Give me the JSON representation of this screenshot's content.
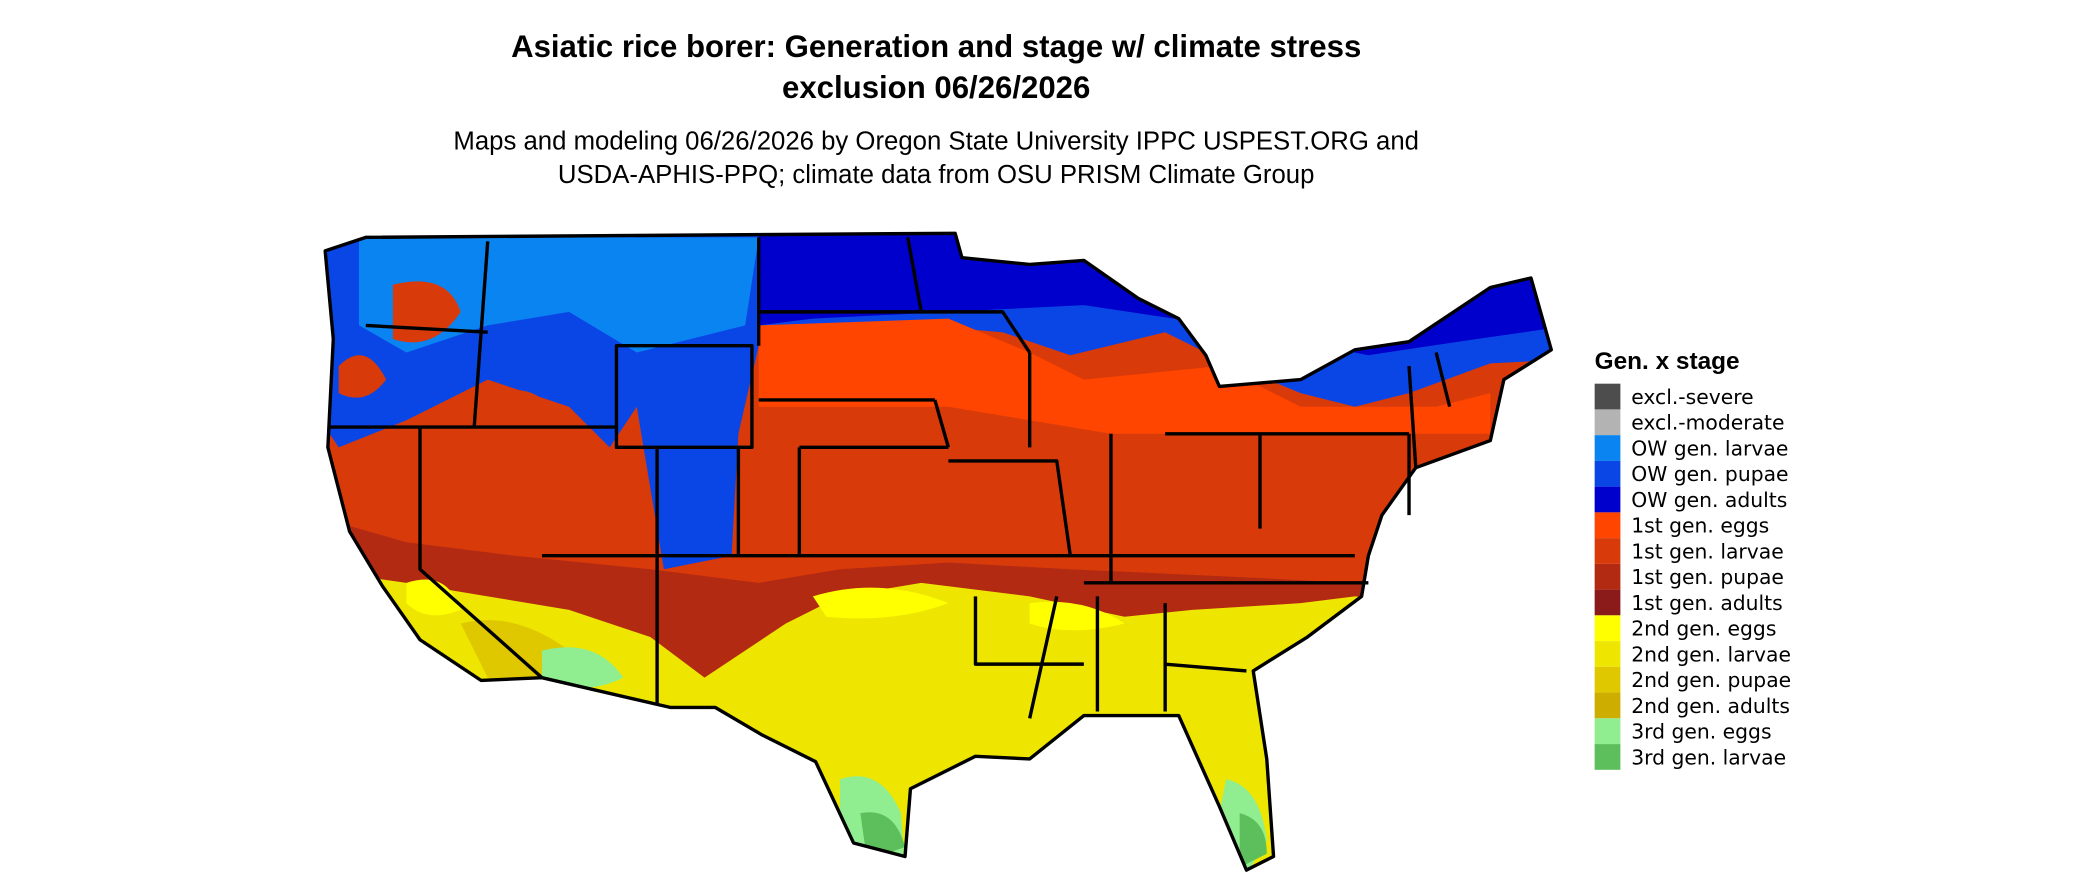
{
  "title": [
    "Asiatic rice borer: Generation and stage w/ climate stress",
    "exclusion 06/26/2026"
  ],
  "subtitle": [
    "Maps and modeling 06/26/2026 by Oregon State University IPPC USPEST.ORG and",
    "USDA-APHIS-PPQ; climate data from OSU PRISM Climate Group"
  ],
  "legend": {
    "title": "Gen. x stage",
    "items": [
      {
        "label": "excl.-severe",
        "color": "#4d4d4d"
      },
      {
        "label": "excl.-moderate",
        "color": "#b3b3b3"
      },
      {
        "label": "OW gen. larvae",
        "color": "#0a84f0"
      },
      {
        "label": "OW gen. pupae",
        "color": "#0a46e6"
      },
      {
        "label": "OW gen. adults",
        "color": "#0000cd"
      },
      {
        "label": "1st gen. eggs",
        "color": "#ff4500"
      },
      {
        "label": "1st gen. larvae",
        "color": "#d93a0a"
      },
      {
        "label": "1st gen. pupae",
        "color": "#b32a12"
      },
      {
        "label": "1st gen. adults",
        "color": "#8b1a1a"
      },
      {
        "label": "2nd gen. eggs",
        "color": "#ffff00"
      },
      {
        "label": "2nd gen. larvae",
        "color": "#eee600"
      },
      {
        "label": "2nd gen. pupae",
        "color": "#e0c800"
      },
      {
        "label": "2nd gen. adults",
        "color": "#cdad00"
      },
      {
        "label": "3rd gen. eggs",
        "color": "#90ee90"
      },
      {
        "label": "3rd gen. larvae",
        "color": "#5cbf5c"
      }
    ]
  }
}
